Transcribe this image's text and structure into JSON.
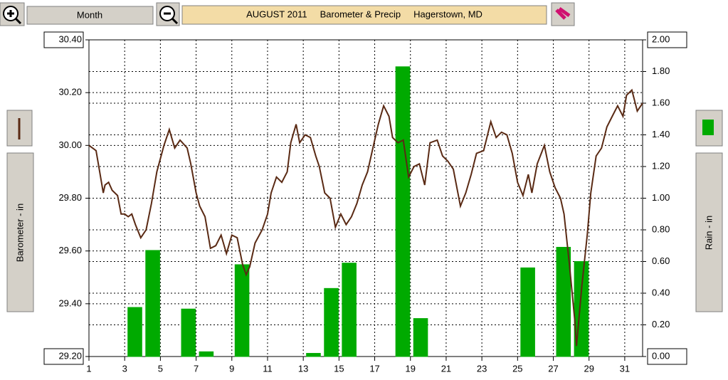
{
  "toolbar": {
    "view_button": "Month"
  },
  "chart_data": {
    "type": "combo",
    "title": "AUGUST 2011     Barometer & Precip     Hagerstown, MD",
    "y_label": "Barometer - in",
    "y2_label": "Rain - in",
    "xlim": [
      1,
      32
    ],
    "xticks": [
      1,
      3,
      5,
      7,
      9,
      11,
      13,
      15,
      17,
      19,
      21,
      23,
      25,
      27,
      29,
      31
    ],
    "ylim": [
      29.2,
      30.4
    ],
    "yticks": [
      {
        "value": 29.2,
        "label": "29.20"
      },
      {
        "value": 29.4,
        "label": "29.40"
      },
      {
        "value": 29.6,
        "label": "29.60"
      },
      {
        "value": 29.8,
        "label": "29.80"
      },
      {
        "value": 30.0,
        "label": "30.00"
      },
      {
        "value": 30.2,
        "label": "30.20"
      },
      {
        "value": 30.4,
        "label": "30.40"
      }
    ],
    "y2lim": [
      0,
      2
    ],
    "y2ticks": [
      {
        "value": 0,
        "label": "0.00"
      },
      {
        "value": 0.2,
        "label": "0.20"
      },
      {
        "value": 0.4,
        "label": "0.40"
      },
      {
        "value": 0.6,
        "label": "0.60"
      },
      {
        "value": 0.8,
        "label": "0.80"
      },
      {
        "value": 1,
        "label": "1.00"
      },
      {
        "value": 1.2,
        "label": "1.20"
      },
      {
        "value": 1.4,
        "label": "1.40"
      },
      {
        "value": 1.6,
        "label": "1.60"
      },
      {
        "value": 1.8,
        "label": "1.80"
      },
      {
        "value": 2,
        "label": "2.00"
      }
    ],
    "grid": true,
    "rain": {
      "color": "#00aa00",
      "axis": "y2",
      "x": [
        1,
        2,
        3,
        4,
        5,
        6,
        7,
        8,
        9,
        10,
        11,
        12,
        13,
        14,
        15,
        16,
        17,
        18,
        19,
        20,
        21,
        22,
        23,
        24,
        25,
        26,
        27,
        28,
        29,
        30,
        31
      ],
      "values": [
        0,
        0,
        0.31,
        0.67,
        0,
        0.3,
        0.03,
        0,
        0.58,
        0,
        0,
        0,
        0.02,
        0.43,
        0.59,
        0,
        0,
        1.83,
        0.24,
        0,
        0,
        0,
        0,
        0,
        0.56,
        0,
        0.69,
        0.6,
        0,
        0,
        0
      ]
    },
    "pressure": {
      "color": "#5a2a14",
      "x": [
        1.0,
        1.4,
        1.6,
        1.8,
        1.9,
        2.1,
        2.3,
        2.6,
        2.8,
        3.0,
        3.2,
        3.4,
        3.6,
        3.9,
        4.2,
        4.5,
        4.8,
        5.2,
        5.5,
        5.8,
        6.1,
        6.5,
        6.7,
        7.0,
        7.2,
        7.5,
        7.8,
        8.1,
        8.4,
        8.7,
        9.0,
        9.3,
        9.6,
        9.8,
        10.0,
        10.3,
        10.7,
        11.0,
        11.2,
        11.5,
        11.8,
        12.1,
        12.3,
        12.6,
        12.8,
        13.1,
        13.4,
        13.7,
        13.9,
        14.2,
        14.5,
        14.8,
        15.1,
        15.4,
        15.7,
        16.0,
        16.3,
        16.6,
        16.9,
        17.2,
        17.5,
        17.8,
        18.0,
        18.3,
        18.6,
        18.9,
        19.2,
        19.5,
        19.8,
        20.1,
        20.5,
        20.8,
        21.1,
        21.4,
        21.8,
        22.1,
        22.4,
        22.7,
        23.1,
        23.5,
        23.8,
        24.1,
        24.4,
        24.7,
        25.0,
        25.3,
        25.6,
        25.8,
        26.1,
        26.5,
        26.8,
        27.1,
        27.4,
        27.6,
        27.9,
        28.2,
        28.3,
        28.6,
        28.9,
        29.1,
        29.4,
        29.7,
        30.0,
        30.3,
        30.6,
        30.9,
        31.1,
        31.4,
        31.7,
        32.0
      ],
      "values": [
        30.0,
        29.98,
        29.9,
        29.82,
        29.85,
        29.86,
        29.83,
        29.81,
        29.74,
        29.74,
        29.73,
        29.74,
        29.7,
        29.65,
        29.68,
        29.78,
        29.9,
        30.0,
        30.06,
        29.99,
        30.02,
        29.99,
        29.93,
        29.82,
        29.77,
        29.73,
        29.61,
        29.62,
        29.66,
        29.59,
        29.66,
        29.65,
        29.55,
        29.51,
        29.54,
        29.63,
        29.68,
        29.74,
        29.82,
        29.88,
        29.86,
        29.9,
        30.01,
        30.08,
        30.01,
        30.04,
        30.03,
        29.96,
        29.92,
        29.82,
        29.8,
        29.69,
        29.74,
        29.7,
        29.73,
        29.78,
        29.85,
        29.9,
        29.99,
        30.08,
        30.15,
        30.11,
        30.03,
        30.01,
        30.02,
        29.88,
        29.92,
        29.93,
        29.85,
        30.01,
        30.02,
        29.96,
        29.94,
        29.91,
        29.77,
        29.82,
        29.89,
        29.97,
        29.98,
        30.09,
        30.03,
        30.05,
        30.04,
        29.97,
        29.86,
        29.81,
        29.89,
        29.82,
        29.93,
        30.0,
        29.9,
        29.84,
        29.8,
        29.74,
        29.55,
        29.34,
        29.24,
        29.47,
        29.66,
        29.82,
        29.96,
        29.99,
        30.07,
        30.11,
        30.15,
        30.11,
        30.19,
        30.21,
        30.13,
        30.16
      ]
    }
  }
}
